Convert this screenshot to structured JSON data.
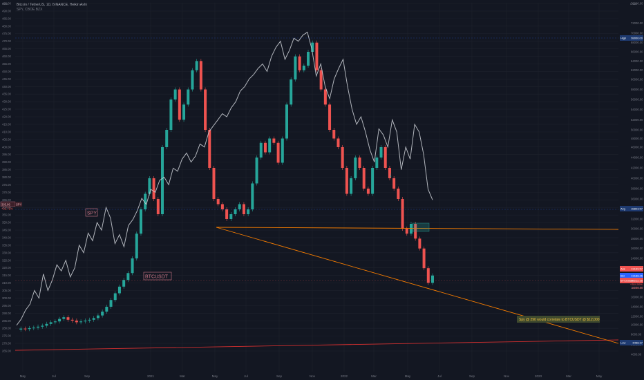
{
  "header": {
    "title": "Bitcoin / TetherUS, 1D, BINANCE, Heikin Ashi",
    "subtitle": "SPY, CBOE BZX"
  },
  "corner_left": "USD",
  "corner_right": "USDT",
  "chart_data": {
    "type": "line",
    "x_ticks": [
      "May",
      "Jul",
      "Sep",
      "2021",
      "Mar",
      "May",
      "Jul",
      "Sep",
      "Nov",
      "2022",
      "Mar",
      "May",
      "Jul",
      "Sep",
      "Nov",
      "2023",
      "Mar",
      "May"
    ],
    "left_axis": {
      "ticks": [
        "495.00",
        "490.00",
        "485.00",
        "480.00",
        "475.00",
        "470.00",
        "465.00",
        "460.00",
        "455.00",
        "450.00",
        "445.00",
        "440.00",
        "435.00",
        "430.00",
        "425.00",
        "420.00",
        "415.00",
        "410.00",
        "405.00",
        "400.00",
        "395.00",
        "390.00",
        "385.00",
        "380.00",
        "375.00",
        "370.00",
        "365.00",
        "360.00",
        "355.00",
        "350.00",
        "345.00",
        "340.00",
        "335.00",
        "330.00",
        "325.00",
        "320.00",
        "315.00",
        "310.00",
        "305.00",
        "300.00",
        "295.00",
        "290.00",
        "285.00",
        "280.00",
        "275.00",
        "270.00",
        "265.00"
      ],
      "range": [
        265,
        495
      ]
    },
    "right_axis": {
      "ticks": [
        "76000.00",
        "72000.00",
        "70000.00",
        "68000.00",
        "66000.00",
        "64000.00",
        "62000.00",
        "60000.00",
        "58000.00",
        "56000.00",
        "54000.00",
        "52000.00",
        "50000.00",
        "48000.00",
        "46000.00",
        "44000.00",
        "42000.00",
        "40000.00",
        "38000.00",
        "36000.00",
        "34000.00",
        "32000.00",
        "30000.00",
        "28000.00",
        "26000.00",
        "24000.00",
        "22000.00",
        "20000.00",
        "18000.00",
        "16000.00",
        "14000.00",
        "12000.00",
        "10000.00",
        "8000.00",
        "6000.00",
        "4000.00"
      ]
    },
    "series": [
      {
        "name": "SPY",
        "color": "#cfd2d8",
        "values": [
          282,
          286,
          292,
          296,
          305,
          300,
          316,
          305,
          312,
          322,
          318,
          325,
          314,
          320,
          335,
          330,
          343,
          338,
          350,
          345,
          360,
          353,
          336,
          342,
          334,
          348,
          352,
          358,
          366,
          362,
          372,
          370,
          378,
          380,
          375,
          386,
          384,
          392,
          396,
          390,
          394,
          402,
          400,
          410,
          414,
          418,
          422,
          420,
          426,
          430,
          437,
          440,
          445,
          448,
          452,
          455,
          450,
          460,
          466,
          470,
          458,
          464,
          472,
          470,
          474,
          476,
          465,
          447,
          455,
          440,
          432,
          445,
          452,
          458,
          440,
          425,
          415,
          420,
          410,
          398,
          390,
          412,
          408,
          400,
          418,
          410,
          385,
          400,
          392,
          415,
          410,
          395,
          372,
          365
        ]
      },
      {
        "name": "BTCUSDT",
        "color": "#26a69a",
        "values": [
          9000,
          9200,
          9100,
          9300,
          9400,
          9600,
          9800,
          10200,
          10600,
          10800,
          11400,
          11800,
          11200,
          11000,
          10600,
          10800,
          11000,
          11200,
          11600,
          12200,
          13000,
          14000,
          15400,
          16800,
          18200,
          19600,
          21000,
          24000,
          29000,
          34000,
          37000,
          40000,
          36000,
          33000,
          46000,
          50000,
          56000,
          58000,
          52000,
          55000,
          58000,
          62000,
          64000,
          58000,
          50000,
          42000,
          36000,
          35000,
          34000,
          32000,
          33000,
          34000,
          35000,
          33000,
          34000,
          39000,
          44000,
          47000,
          45000,
          48000,
          47000,
          43000,
          48000,
          55000,
          60000,
          65000,
          62000,
          63000,
          66000,
          68000,
          62000,
          58000,
          55000,
          50000,
          48000,
          46000,
          42000,
          37000,
          40000,
          44000,
          42000,
          38000,
          37000,
          42000,
          44000,
          46000,
          42000,
          40000,
          38000,
          36000,
          30000,
          29000,
          31000,
          28000,
          26000,
          22000,
          19000,
          20500
        ]
      }
    ],
    "labels": {
      "spy_tag": "SPY",
      "btc_tag": "BTCUSDT",
      "annotation": "Spy @ 290 would correlate to BTCUSDT @ $12,000"
    },
    "price_tags": {
      "high_label": "High",
      "high_value": "69000.00",
      "avg_label": "Avg",
      "avg_value": "33823.57",
      "ask_label": "Ask",
      "ask_value": "19199.57",
      "bid_label": "Bid",
      "bid_value": "19188.26",
      "btc_label": "BTCUSDT",
      "btc_value": "19212.35",
      "btc_change": "+304.59%",
      "btc_time": "10:56:39",
      "low_label": "Low",
      "low_value": "6468.37",
      "spy_value": "365.86",
      "spy_change": "+21.71%",
      "spy_label": "SPY"
    },
    "colors": {
      "background": "#131722",
      "grid": "#1e222d",
      "up": "#26a69a",
      "down": "#ef5350",
      "spy": "#cfd2d8",
      "trend": "#f57c00",
      "support_red": "#d32f2f",
      "annotation_bg": "#3f4a2e",
      "annotation_text": "#f0c040"
    },
    "grid": true
  }
}
